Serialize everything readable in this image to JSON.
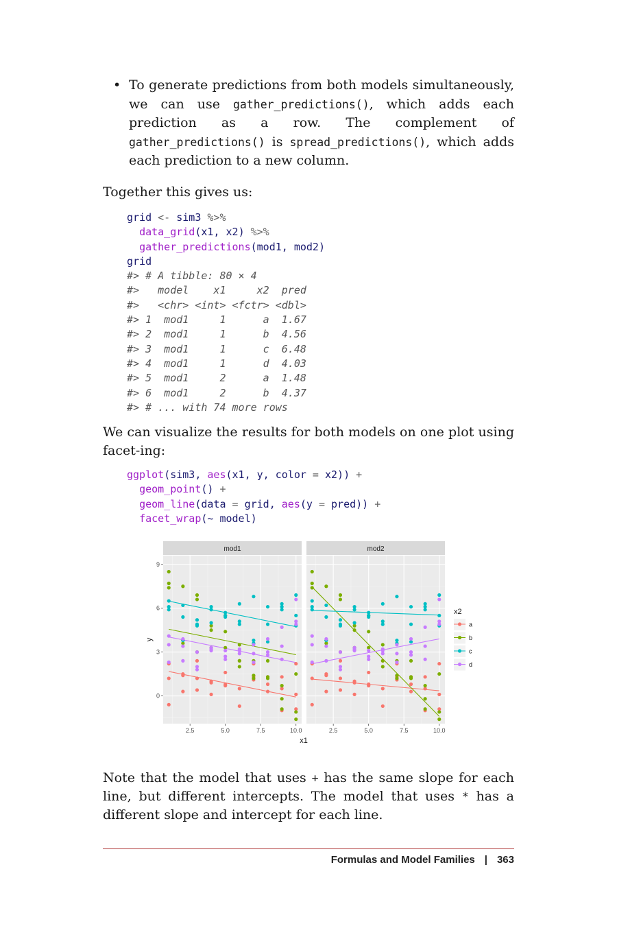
{
  "bullet": {
    "symbol": "•",
    "t1": "To generate predictions from both models simultaneously, we can use ",
    "c1": "gather_predictions()",
    "t2": ", which adds each prediction as a row. The complement of ",
    "c2": "gather_predictions()",
    "t3": " is ",
    "c3": "spread_predictions()",
    "t4": ", which adds each prediction to a new column."
  },
  "para_together": "Together this gives us:",
  "code1": [
    [
      {
        "t": "grid",
        "k": "var"
      },
      {
        "t": " <- ",
        "k": "op"
      },
      {
        "t": "sim3",
        "k": "var"
      },
      {
        "t": " %>%",
        "k": "op"
      }
    ],
    [
      {
        "t": "  ",
        "k": "var"
      },
      {
        "t": "data_grid",
        "k": "fn"
      },
      {
        "t": "(",
        "k": "var"
      },
      {
        "t": "x1",
        "k": "var"
      },
      {
        "t": ", ",
        "k": "var"
      },
      {
        "t": "x2",
        "k": "var"
      },
      {
        "t": ") ",
        "k": "var"
      },
      {
        "t": "%>%",
        "k": "op"
      }
    ],
    [
      {
        "t": "  ",
        "k": "var"
      },
      {
        "t": "gather_predictions",
        "k": "fn"
      },
      {
        "t": "(mod1, mod2)",
        "k": "var"
      }
    ],
    [
      {
        "t": "grid",
        "k": "var"
      }
    ],
    [
      {
        "t": "#> # A tibble: 80 × 4",
        "k": "cm"
      }
    ],
    [
      {
        "t": "#>   model    x1     x2  pred",
        "k": "cm"
      }
    ],
    [
      {
        "t": "#>   <chr> <int> <fctr> <dbl>",
        "k": "cm"
      }
    ],
    [
      {
        "t": "#> 1  mod1     1      a  1.67",
        "k": "cm"
      }
    ],
    [
      {
        "t": "#> 2  mod1     1      b  4.56",
        "k": "cm"
      }
    ],
    [
      {
        "t": "#> 3  mod1     1      c  6.48",
        "k": "cm"
      }
    ],
    [
      {
        "t": "#> 4  mod1     1      d  4.03",
        "k": "cm"
      }
    ],
    [
      {
        "t": "#> 5  mod1     2      a  1.48",
        "k": "cm"
      }
    ],
    [
      {
        "t": "#> 6  mod1     2      b  4.37",
        "k": "cm"
      }
    ],
    [
      {
        "t": "#> # ... with 74 more rows",
        "k": "cm"
      }
    ]
  ],
  "para_visualize": "We can visualize the results for both models on one plot using facet-ing:",
  "code2": [
    [
      {
        "t": "ggplot",
        "k": "fn"
      },
      {
        "t": "(sim3, ",
        "k": "var"
      },
      {
        "t": "aes",
        "k": "fn"
      },
      {
        "t": "(x1, y, ",
        "k": "var"
      },
      {
        "t": "color",
        "k": "var"
      },
      {
        "t": " = ",
        "k": "op"
      },
      {
        "t": "x2)) ",
        "k": "var"
      },
      {
        "t": "+",
        "k": "op"
      }
    ],
    [
      {
        "t": "  ",
        "k": "var"
      },
      {
        "t": "geom_point",
        "k": "fn"
      },
      {
        "t": "() ",
        "k": "var"
      },
      {
        "t": "+",
        "k": "op"
      }
    ],
    [
      {
        "t": "  ",
        "k": "var"
      },
      {
        "t": "geom_line",
        "k": "fn"
      },
      {
        "t": "(data ",
        "k": "var"
      },
      {
        "t": "=",
        "k": "op"
      },
      {
        "t": " grid, ",
        "k": "var"
      },
      {
        "t": "aes",
        "k": "fn"
      },
      {
        "t": "(y ",
        "k": "var"
      },
      {
        "t": "=",
        "k": "op"
      },
      {
        "t": " pred)) ",
        "k": "var"
      },
      {
        "t": "+",
        "k": "op"
      }
    ],
    [
      {
        "t": "  ",
        "k": "var"
      },
      {
        "t": "facet_wrap",
        "k": "fn"
      },
      {
        "t": "(~ model)",
        "k": "var"
      }
    ]
  ],
  "para_note": {
    "t1": "Note that the model that uses ",
    "c1": "+",
    "t2": " has the same slope for each line, but different intercepts. The model that uses ",
    "c2": "*",
    "t3": " has a different slope and intercept for each line."
  },
  "footer": {
    "section": "Formulas and Model Families",
    "separator": "|",
    "page": "363"
  },
  "chart_data": {
    "type": "scatter",
    "facets": [
      "mod1",
      "mod2"
    ],
    "xlabel": "x1",
    "ylabel": "y",
    "xlim": [
      0.6,
      10.4
    ],
    "ylim": [
      -1.9,
      9.6
    ],
    "xticks": [
      2.5,
      5.0,
      7.5,
      10.0
    ],
    "xtick_labels": [
      "2.5",
      "5.0",
      "7.5",
      "10.0"
    ],
    "yticks": [
      0,
      3,
      6,
      9
    ],
    "ytick_labels": [
      "0",
      "3",
      "6",
      "9"
    ],
    "grid": true,
    "legend_title": "x2",
    "legend_position": "right",
    "series": [
      {
        "name": "a",
        "color": "#F8766D",
        "points": [
          [
            1,
            1.2
          ],
          [
            1,
            -0.6
          ],
          [
            1,
            2.2
          ],
          [
            2,
            1.5
          ],
          [
            2,
            0.3
          ],
          [
            2,
            1.4
          ],
          [
            3,
            2.4
          ],
          [
            3,
            0.4
          ],
          [
            3,
            1.2
          ],
          [
            4,
            1.0
          ],
          [
            4,
            0.1
          ],
          [
            4,
            0.9
          ],
          [
            5,
            1.6
          ],
          [
            5,
            0.8
          ],
          [
            5,
            0.7
          ],
          [
            6,
            2.4
          ],
          [
            6,
            -0.7
          ],
          [
            6,
            0.5
          ],
          [
            7,
            1.3
          ],
          [
            7,
            1.1
          ],
          [
            7,
            2.2
          ],
          [
            8,
            0.8
          ],
          [
            8,
            0.3
          ],
          [
            8,
            1.3
          ],
          [
            9,
            1.3
          ],
          [
            9,
            -1.0
          ],
          [
            9,
            0.5
          ],
          [
            10,
            2.2
          ],
          [
            10,
            -0.9
          ],
          [
            10,
            0.1
          ]
        ],
        "fit": {
          "mod1": [
            1.67,
            -0.08
          ],
          "mod2": [
            1.15,
            0.35
          ]
        }
      },
      {
        "name": "b",
        "color": "#7CAE00",
        "points": [
          [
            1,
            8.5
          ],
          [
            1,
            7.4
          ],
          [
            1,
            7.7
          ],
          [
            2,
            7.5
          ],
          [
            2,
            3.6
          ],
          [
            2,
            3.8
          ],
          [
            3,
            6.9
          ],
          [
            3,
            6.6
          ],
          [
            3,
            3.0
          ],
          [
            4,
            4.5
          ],
          [
            4,
            4.8
          ],
          [
            4,
            3.3
          ],
          [
            5,
            4.4
          ],
          [
            5,
            5.5
          ],
          [
            5,
            3.3
          ],
          [
            6,
            3.5
          ],
          [
            6,
            2.4
          ],
          [
            6,
            2.0
          ],
          [
            7,
            1.4
          ],
          [
            7,
            1.2
          ],
          [
            7,
            2.4
          ],
          [
            8,
            1.2
          ],
          [
            8,
            2.4
          ],
          [
            8,
            1.3
          ],
          [
            9,
            0.7
          ],
          [
            9,
            -0.2
          ],
          [
            9,
            -0.9
          ],
          [
            10,
            1.5
          ],
          [
            10,
            -1.1
          ],
          [
            10,
            -1.6
          ]
        ],
        "fit": {
          "mod1": [
            4.56,
            2.82
          ],
          "mod2": [
            7.45,
            -1.4
          ]
        }
      },
      {
        "name": "c",
        "color": "#00BFC4",
        "points": [
          [
            1,
            6.5
          ],
          [
            1,
            5.9
          ],
          [
            1,
            6.1
          ],
          [
            2,
            5.4
          ],
          [
            2,
            6.2
          ],
          [
            2,
            3.8
          ],
          [
            3,
            5.2
          ],
          [
            3,
            4.8
          ],
          [
            3,
            4.9
          ],
          [
            4,
            6.1
          ],
          [
            4,
            5.0
          ],
          [
            4,
            5.9
          ],
          [
            5,
            5.7
          ],
          [
            5,
            5.5
          ],
          [
            5,
            5.4
          ],
          [
            6,
            6.3
          ],
          [
            6,
            4.9
          ],
          [
            6,
            5.1
          ],
          [
            7,
            6.8
          ],
          [
            7,
            3.8
          ],
          [
            7,
            3.6
          ],
          [
            8,
            4.9
          ],
          [
            8,
            6.1
          ],
          [
            8,
            3.7
          ],
          [
            9,
            6.3
          ],
          [
            9,
            5.9
          ],
          [
            9,
            6.1
          ],
          [
            10,
            6.9
          ],
          [
            10,
            5.5
          ],
          [
            10,
            4.8
          ]
        ],
        "fit": {
          "mod1": [
            6.48,
            4.74
          ],
          "mod2": [
            5.85,
            5.53
          ]
        }
      },
      {
        "name": "d",
        "color": "#C77CFF",
        "points": [
          [
            1,
            2.3
          ],
          [
            1,
            4.1
          ],
          [
            1,
            3.5
          ],
          [
            2,
            2.4
          ],
          [
            2,
            3.4
          ],
          [
            2,
            3.9
          ],
          [
            3,
            2.0
          ],
          [
            3,
            1.8
          ],
          [
            3,
            3.0
          ],
          [
            4,
            3.3
          ],
          [
            4,
            3.1
          ],
          [
            4,
            3.2
          ],
          [
            5,
            2.7
          ],
          [
            5,
            2.5
          ],
          [
            5,
            3.1
          ],
          [
            6,
            3.1
          ],
          [
            6,
            3.2
          ],
          [
            6,
            2.9
          ],
          [
            7,
            2.9
          ],
          [
            7,
            2.3
          ],
          [
            7,
            3.5
          ],
          [
            8,
            3.9
          ],
          [
            8,
            2.8
          ],
          [
            8,
            3.0
          ],
          [
            9,
            2.5
          ],
          [
            9,
            3.4
          ],
          [
            9,
            4.7
          ],
          [
            10,
            6.6
          ],
          [
            10,
            5.1
          ],
          [
            10,
            4.9
          ]
        ],
        "fit": {
          "mod1": [
            4.03,
            2.28
          ],
          "mod2": [
            2.2,
            3.9
          ]
        }
      }
    ]
  }
}
